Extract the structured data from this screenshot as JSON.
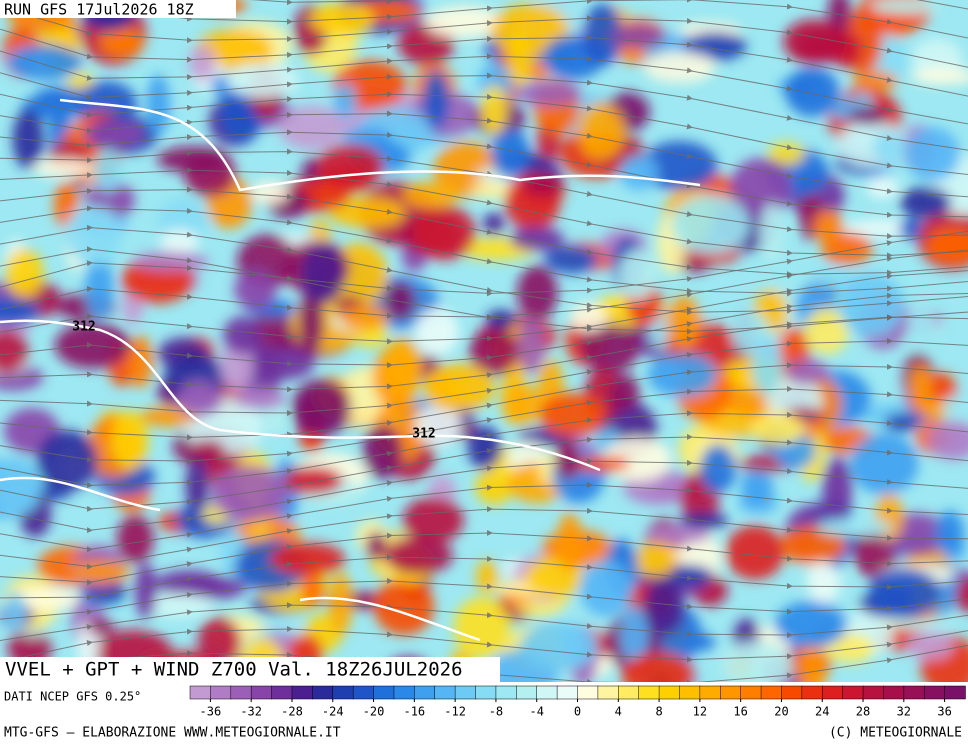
{
  "header": {
    "run": "RUN GFS 17Jul2026 18Z"
  },
  "map": {
    "title": "VVEL + GPT + WIND Z700 Val. 18Z26JUL2026",
    "contour_labels": [
      "312",
      "312"
    ]
  },
  "colorbar": {
    "source": "DATI NCEP GFS 0.25°",
    "lim": [
      -38,
      38
    ],
    "ticks": [
      -36,
      -32,
      -28,
      -24,
      -20,
      -16,
      -12,
      -8,
      -4,
      0,
      4,
      8,
      12,
      16,
      20,
      24,
      28,
      32,
      36
    ],
    "colors": [
      "#c39bd3",
      "#b07cc6",
      "#9b5fb8",
      "#8844a8",
      "#6e2f9c",
      "#4b1f8f",
      "#2a2a9a",
      "#1f3fb0",
      "#1f55c8",
      "#2070dc",
      "#2a88e8",
      "#3fa0f0",
      "#55b5f5",
      "#6ccaf5",
      "#86dcf5",
      "#9de8f2",
      "#b5f0f0",
      "#d0f7f5",
      "#eafcf8",
      "#fffde0",
      "#fff5a0",
      "#ffec60",
      "#ffe020",
      "#ffd000",
      "#ffbf00",
      "#ffab00",
      "#ff9600",
      "#ff7e00",
      "#ff6600",
      "#f74a00",
      "#ea3010",
      "#dd1f20",
      "#cc1530",
      "#b8103f",
      "#a80f4a",
      "#981055",
      "#881060",
      "#7a1068"
    ]
  },
  "footer": {
    "left": "MTG-GFS – ELABORAZIONE WWW.METEOGIORNALE.IT",
    "right": "(C) METEOGIORNALE"
  }
}
